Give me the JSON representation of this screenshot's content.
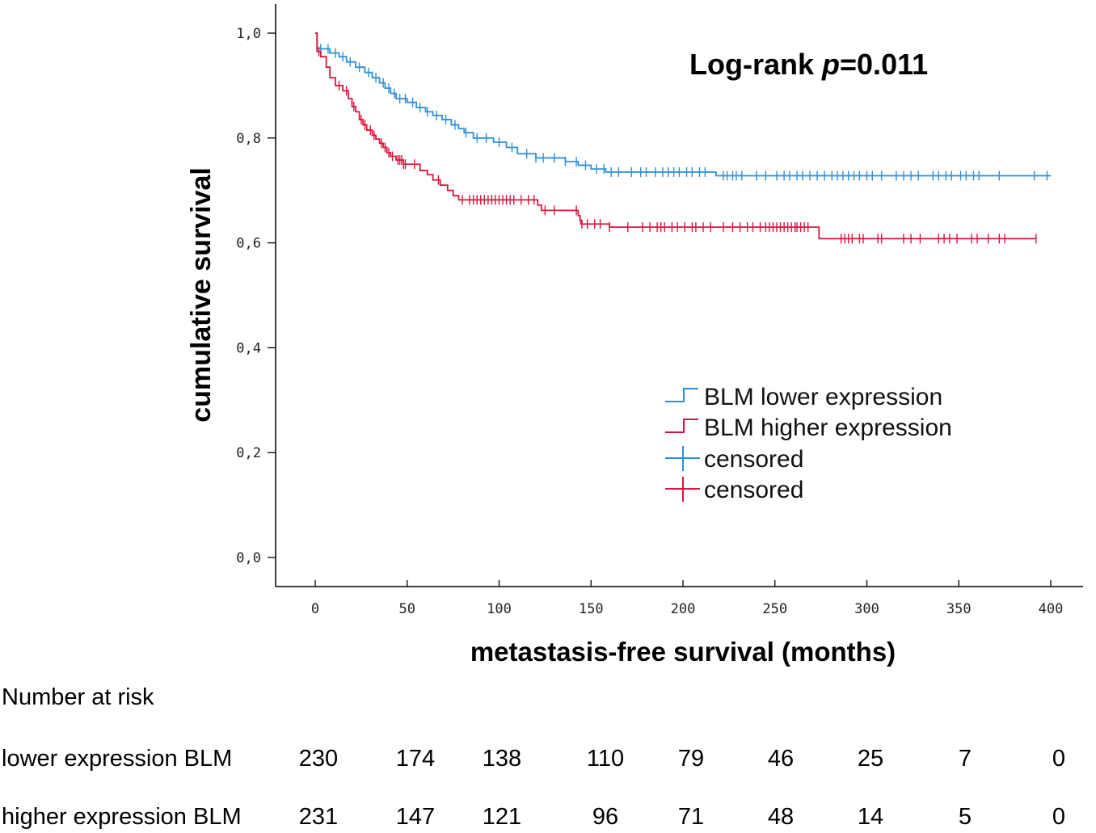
{
  "chart_data": {
    "type": "line",
    "subtype": "kaplan-meier",
    "annotation": {
      "prefix": "Log-rank ",
      "italic": "p",
      "suffix": "=0.011"
    },
    "xlabel": "metastasis-free survival (months)",
    "ylabel": "cumulative survival",
    "xlim": [
      0,
      400
    ],
    "ylim": [
      0,
      1.0
    ],
    "x_ticks": [
      0,
      50,
      100,
      150,
      200,
      250,
      300,
      350,
      400
    ],
    "x_tick_labels": [
      "0",
      "50",
      "100",
      "150",
      "200",
      "250",
      "300",
      "350",
      "400"
    ],
    "y_ticks": [
      0,
      0.2,
      0.4,
      0.6,
      0.8,
      1.0
    ],
    "y_tick_labels": [
      "0,0",
      "0,2",
      "0,4",
      "0,6",
      "0,8",
      "1,0"
    ],
    "legend": {
      "position": "center-right",
      "entries": [
        {
          "label": "BLM lower expression",
          "kind": "line",
          "series": 0
        },
        {
          "label": "BLM higher expression",
          "kind": "line",
          "series": 1
        },
        {
          "label": "censored",
          "kind": "censor",
          "series": 0
        },
        {
          "label": "censored",
          "kind": "censor",
          "series": 1
        }
      ]
    },
    "series": [
      {
        "name": "BLM lower expression",
        "color": "#2e8fd8",
        "steps": [
          [
            0,
            1.0
          ],
          [
            1,
            0.97
          ],
          [
            8,
            0.962
          ],
          [
            13,
            0.955
          ],
          [
            17,
            0.945
          ],
          [
            22,
            0.935
          ],
          [
            27,
            0.925
          ],
          [
            31,
            0.915
          ],
          [
            35,
            0.905
          ],
          [
            38,
            0.895
          ],
          [
            41,
            0.885
          ],
          [
            44,
            0.875
          ],
          [
            50,
            0.868
          ],
          [
            55,
            0.858
          ],
          [
            60,
            0.85
          ],
          [
            64,
            0.843
          ],
          [
            69,
            0.835
          ],
          [
            74,
            0.825
          ],
          [
            78,
            0.818
          ],
          [
            81,
            0.81
          ],
          [
            86,
            0.8
          ],
          [
            97,
            0.792
          ],
          [
            104,
            0.782
          ],
          [
            110,
            0.77
          ],
          [
            120,
            0.762
          ],
          [
            136,
            0.755
          ],
          [
            143,
            0.748
          ],
          [
            150,
            0.741
          ],
          [
            158,
            0.735
          ],
          [
            218,
            0.728
          ],
          [
            400,
            0.728
          ]
        ],
        "censored": [
          3,
          7,
          11,
          15,
          19,
          24,
          29,
          33,
          37,
          40,
          43,
          46,
          49,
          53,
          57,
          61,
          66,
          71,
          76,
          82,
          88,
          93,
          100,
          107,
          115,
          120,
          124,
          130,
          136,
          142,
          147,
          153,
          157,
          161,
          165,
          172,
          177,
          180,
          185,
          189,
          192,
          195,
          198,
          202,
          205,
          209,
          212,
          222,
          224,
          227,
          229,
          232,
          240,
          245,
          251,
          255,
          258,
          262,
          265,
          269,
          273,
          277,
          281,
          284,
          287,
          290,
          293,
          296,
          300,
          303,
          308,
          316,
          320,
          324,
          328,
          336,
          339,
          343,
          346,
          351,
          354,
          358,
          361,
          372,
          391,
          398
        ]
      },
      {
        "name": "BLM higher expression",
        "color": "#d8173f",
        "steps": [
          [
            0,
            1.0
          ],
          [
            1,
            0.965
          ],
          [
            3,
            0.955
          ],
          [
            6,
            0.935
          ],
          [
            8,
            0.915
          ],
          [
            11,
            0.9
          ],
          [
            15,
            0.89
          ],
          [
            18,
            0.875
          ],
          [
            20,
            0.86
          ],
          [
            22,
            0.85
          ],
          [
            24,
            0.835
          ],
          [
            26,
            0.825
          ],
          [
            28,
            0.815
          ],
          [
            31,
            0.805
          ],
          [
            33,
            0.798
          ],
          [
            35,
            0.79
          ],
          [
            37,
            0.782
          ],
          [
            39,
            0.772
          ],
          [
            41,
            0.765
          ],
          [
            44,
            0.758
          ],
          [
            48,
            0.75
          ],
          [
            57,
            0.738
          ],
          [
            61,
            0.73
          ],
          [
            64,
            0.72
          ],
          [
            68,
            0.71
          ],
          [
            72,
            0.7
          ],
          [
            75,
            0.69
          ],
          [
            78,
            0.682
          ],
          [
            121,
            0.672
          ],
          [
            123,
            0.662
          ],
          [
            143,
            0.652
          ],
          [
            144,
            0.642
          ],
          [
            144.5,
            0.636
          ],
          [
            160,
            0.63
          ],
          [
            274,
            0.608
          ],
          [
            392,
            0.608
          ]
        ],
        "censored": [
          2,
          13,
          17,
          21,
          25,
          27,
          30,
          32,
          36,
          38,
          40,
          42,
          45,
          46,
          47,
          48,
          49,
          54,
          67,
          80,
          84,
          86,
          88,
          90,
          92,
          94,
          96,
          98,
          100,
          102,
          104,
          106,
          108,
          112,
          116,
          119,
          125,
          130,
          142,
          145,
          148,
          152,
          155,
          160,
          170,
          178,
          182,
          186,
          188,
          190,
          194,
          197,
          201,
          205,
          207,
          211,
          215,
          222,
          227,
          231,
          235,
          238,
          242,
          245,
          247,
          249,
          251,
          253,
          255,
          257,
          259,
          261,
          262,
          264,
          266,
          268,
          286,
          288,
          290,
          292,
          296,
          298,
          306,
          308,
          320,
          324,
          329,
          339,
          342,
          345,
          349,
          357,
          360,
          366,
          372,
          375,
          392
        ]
      }
    ]
  },
  "risk_table": {
    "title": "Number at risk",
    "rows": [
      {
        "label": "lower expression BLM",
        "values": [
          "230",
          "174",
          "138",
          "110",
          "79",
          "46",
          "25",
          "7",
          "0"
        ]
      },
      {
        "label": "higher expression BLM",
        "values": [
          "231",
          "147",
          "121",
          "96",
          "71",
          "48",
          "14",
          "5",
          "0"
        ]
      }
    ]
  }
}
